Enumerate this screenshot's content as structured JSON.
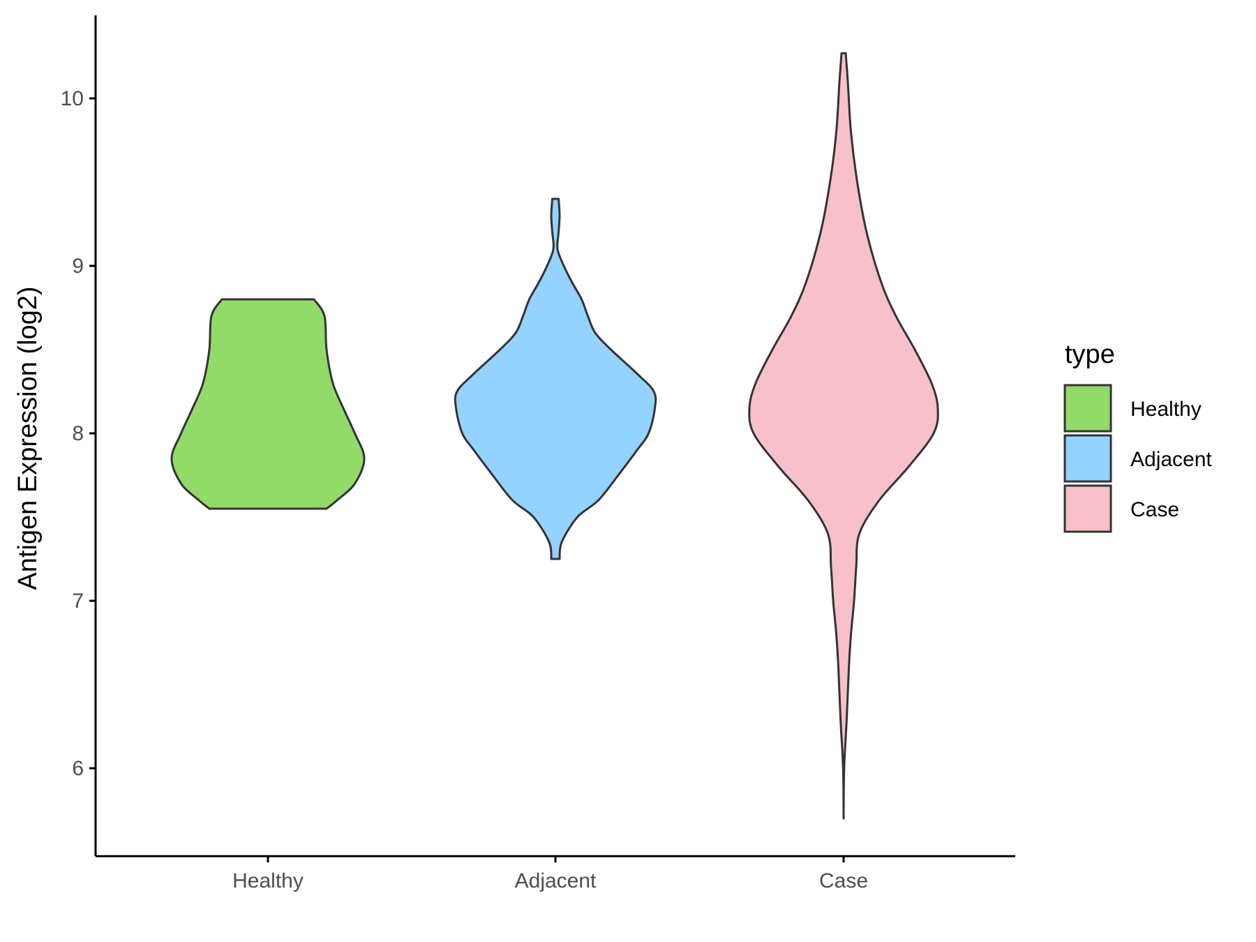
{
  "chart_data": {
    "type": "violin",
    "title": "",
    "xlabel": "",
    "ylabel": "Antigen Expression (log2)",
    "ylim": [
      5.48,
      10.5
    ],
    "yticks": [
      6,
      7,
      8,
      9,
      10
    ],
    "categories": [
      "Healthy",
      "Adjacent",
      "Case"
    ],
    "legend": {
      "title": "type",
      "position": "right",
      "entries": [
        "Healthy",
        "Adjacent",
        "Case"
      ]
    },
    "grid": false,
    "series": [
      {
        "name": "Healthy",
        "color": "#93DB69",
        "min": 7.55,
        "max": 8.8,
        "density": [
          [
            7.55,
            0.56
          ],
          [
            7.6,
            0.66
          ],
          [
            7.7,
            0.83
          ],
          [
            7.85,
            0.92
          ],
          [
            8.0,
            0.83
          ],
          [
            8.15,
            0.72
          ],
          [
            8.3,
            0.62
          ],
          [
            8.5,
            0.56
          ],
          [
            8.7,
            0.54
          ],
          [
            8.8,
            0.44
          ]
        ]
      },
      {
        "name": "Adjacent",
        "color": "#94D2FF",
        "min": 7.25,
        "max": 9.4,
        "density": [
          [
            7.25,
            0.04
          ],
          [
            7.35,
            0.06
          ],
          [
            7.5,
            0.21
          ],
          [
            7.6,
            0.41
          ],
          [
            7.75,
            0.6
          ],
          [
            7.9,
            0.78
          ],
          [
            8.0,
            0.89
          ],
          [
            8.15,
            0.95
          ],
          [
            8.25,
            0.94
          ],
          [
            8.35,
            0.79
          ],
          [
            8.5,
            0.53
          ],
          [
            8.6,
            0.38
          ],
          [
            8.7,
            0.31
          ],
          [
            8.8,
            0.25
          ],
          [
            8.9,
            0.16
          ],
          [
            9.0,
            0.08
          ],
          [
            9.1,
            0.02
          ],
          [
            9.2,
            0.03
          ],
          [
            9.3,
            0.04
          ],
          [
            9.4,
            0.03
          ]
        ]
      },
      {
        "name": "Case",
        "color": "#F7C0CB",
        "min": 5.7,
        "max": 10.27,
        "density": [
          [
            5.7,
            0.0
          ],
          [
            6.0,
            0.005
          ],
          [
            6.3,
            0.03
          ],
          [
            6.6,
            0.05
          ],
          [
            6.8,
            0.07
          ],
          [
            7.0,
            0.1
          ],
          [
            7.2,
            0.12
          ],
          [
            7.4,
            0.15
          ],
          [
            7.6,
            0.34
          ],
          [
            7.8,
            0.62
          ],
          [
            8.0,
            0.86
          ],
          [
            8.15,
            0.9
          ],
          [
            8.3,
            0.84
          ],
          [
            8.5,
            0.68
          ],
          [
            8.7,
            0.5
          ],
          [
            8.9,
            0.36
          ],
          [
            9.2,
            0.22
          ],
          [
            9.5,
            0.13
          ],
          [
            9.8,
            0.07
          ],
          [
            10.1,
            0.04
          ],
          [
            10.27,
            0.02
          ]
        ]
      }
    ]
  }
}
